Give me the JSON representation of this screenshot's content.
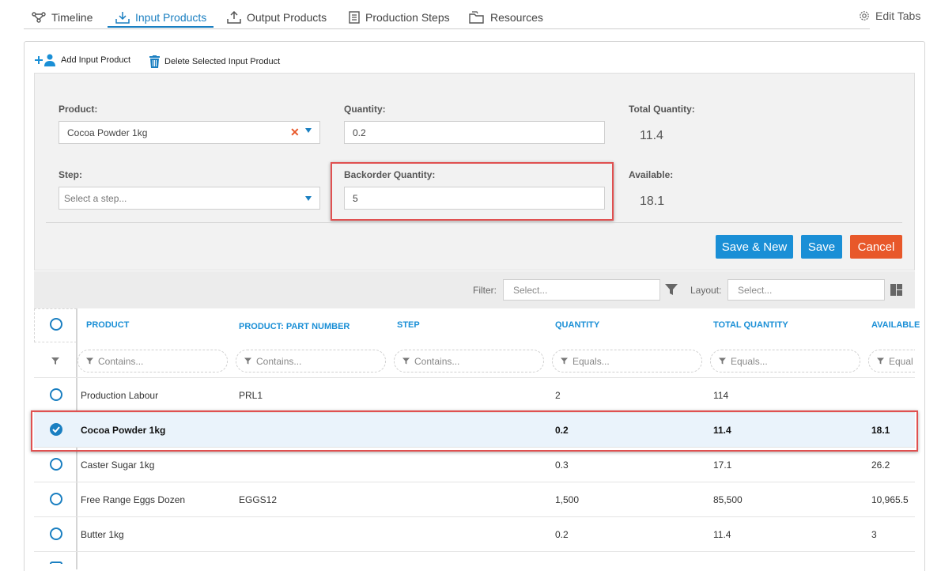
{
  "tabs": [
    {
      "label": "Timeline",
      "icon": "timeline-icon"
    },
    {
      "label": "Input Products",
      "icon": "input-products-icon",
      "active": true
    },
    {
      "label": "Output Products",
      "icon": "output-products-icon"
    },
    {
      "label": "Production Steps",
      "icon": "production-steps-icon"
    },
    {
      "label": "Resources",
      "icon": "resources-icon"
    }
  ],
  "edit_tabs": "Edit Tabs",
  "toolbar": {
    "add_label": "Add Input Product",
    "delete_label": "Delete Selected Input Product"
  },
  "form": {
    "product_label": "Product:",
    "product_value": "Cocoa Powder 1kg",
    "quantity_label": "Quantity:",
    "quantity_value": "0.2",
    "total_quantity_label": "Total Quantity:",
    "total_quantity_value": "11.4",
    "step_label": "Step:",
    "step_placeholder": "Select a step...",
    "backorder_label": "Backorder Quantity:",
    "backorder_value": "5",
    "available_label": "Available:",
    "available_value": "18.1",
    "save_new": "Save & New",
    "save": "Save",
    "cancel": "Cancel"
  },
  "grid": {
    "filter_label": "Filter:",
    "filter_placeholder": "Select...",
    "layout_label": "Layout:",
    "layout_placeholder": "Select...",
    "columns": [
      "PRODUCT",
      "PRODUCT: PART NUMBER",
      "STEP",
      "QUANTITY",
      "TOTAL QUANTITY",
      "AVAILABLE"
    ],
    "filters": [
      "Contains...",
      "Contains...",
      "Contains...",
      "Equals...",
      "Equals...",
      "Equal"
    ],
    "rows": [
      {
        "product": "Production Labour",
        "part": "PRL1",
        "step": "",
        "quantity": "2",
        "total": "114",
        "available": "",
        "selected": false
      },
      {
        "product": "Cocoa Powder 1kg",
        "part": "",
        "step": "",
        "quantity": "0.2",
        "total": "11.4",
        "available": "18.1",
        "selected": true
      },
      {
        "product": "Caster Sugar 1kg",
        "part": "",
        "step": "",
        "quantity": "0.3",
        "total": "17.1",
        "available": "26.2",
        "selected": false
      },
      {
        "product": "Free Range Eggs Dozen",
        "part": "EGGS12",
        "step": "",
        "quantity": "1,500",
        "total": "85,500",
        "available": "10,965.5",
        "selected": false
      },
      {
        "product": "Butter 1kg",
        "part": "",
        "step": "",
        "quantity": "0.2",
        "total": "11.4",
        "available": "3",
        "selected": false
      }
    ]
  },
  "colors": {
    "accent": "#1a7fc1",
    "button_blue": "#1a8fd6",
    "cancel_orange": "#e8582a",
    "highlight_red": "#e05050",
    "selected_row_bg": "#eaf3fb"
  }
}
